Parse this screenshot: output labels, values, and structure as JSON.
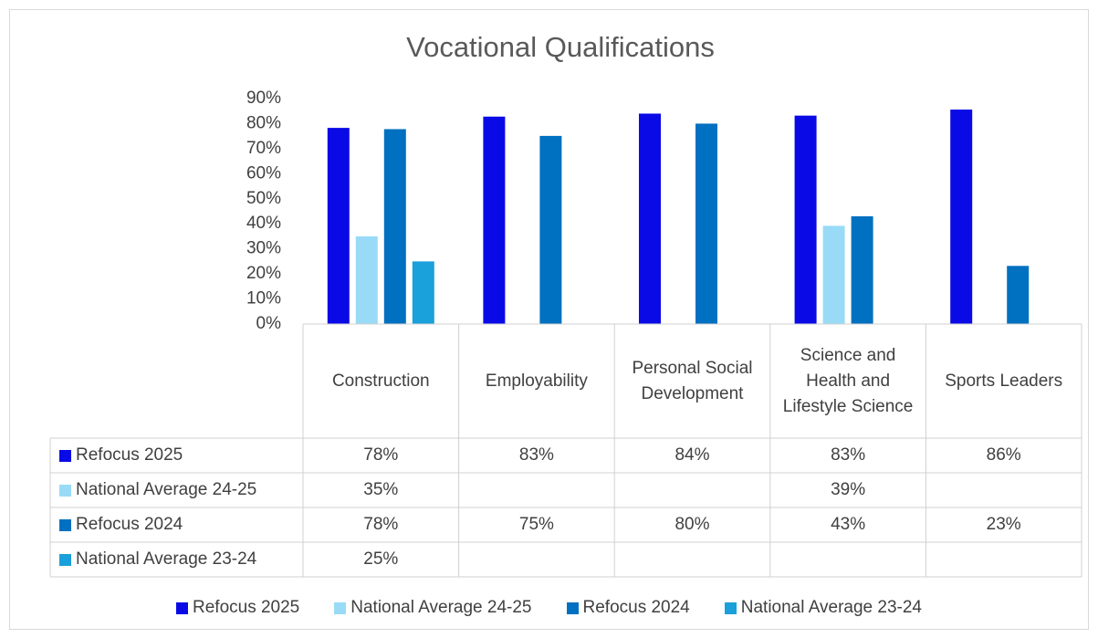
{
  "chart_data": {
    "type": "bar",
    "title": "Vocational Qualifications",
    "categories": [
      "Construction",
      "Employability",
      "Personal Social Development",
      "Science and Health and Lifestyle Science",
      "Sports Leaders"
    ],
    "series": [
      {
        "name": "Refocus 2025",
        "color": "#0a0ae6",
        "values": [
          78.3,
          82.8,
          84,
          83.2,
          85.6
        ],
        "value_labels": [
          "78%",
          "83%",
          "84%",
          "83%",
          "86%"
        ]
      },
      {
        "name": "National Average 24-25",
        "color": "#99dbf7",
        "values": [
          35,
          null,
          null,
          39.2,
          null
        ],
        "value_labels": [
          "35%",
          null,
          null,
          "39%",
          null
        ]
      },
      {
        "name": "Refocus 2024",
        "color": "#0070c0",
        "values": [
          77.8,
          75.1,
          80,
          43,
          23.2
        ],
        "value_labels": [
          "78%",
          "75%",
          "80%",
          "43%",
          "23%"
        ]
      },
      {
        "name": "National Average 23-24",
        "color": "#1aa0da",
        "values": [
          25,
          null,
          null,
          null,
          null
        ],
        "value_labels": [
          "25%",
          null,
          null,
          null,
          null
        ]
      }
    ],
    "ylim": [
      0,
      90
    ],
    "yticks": [
      {
        "value": 0,
        "label": "0%"
      },
      {
        "value": 10,
        "label": "10%"
      },
      {
        "value": 20,
        "label": "20%"
      },
      {
        "value": 30,
        "label": "30%"
      },
      {
        "value": 40,
        "label": "40%"
      },
      {
        "value": 50,
        "label": "50%"
      },
      {
        "value": 60,
        "label": "60%"
      },
      {
        "value": 70,
        "label": "70%"
      },
      {
        "value": 80,
        "label": "80%"
      },
      {
        "value": 90,
        "label": "90%"
      }
    ],
    "grid": false,
    "legend": "bottom"
  }
}
